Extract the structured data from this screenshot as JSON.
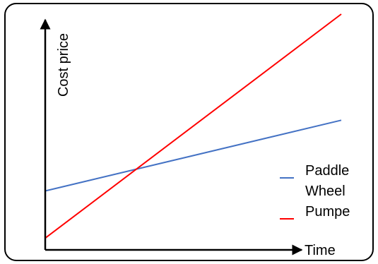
{
  "chart_data": {
    "type": "line",
    "title": "",
    "xlabel": "Time",
    "ylabel": "Cost price",
    "axes_tick_labels": false,
    "grid": false,
    "legend_position": "right",
    "series": [
      {
        "name": "Paddle Wheel",
        "legend_lines": [
          "Paddle",
          "Wheel"
        ],
        "color": "#4472c4",
        "x": [
          0,
          1
        ],
        "y": [
          0.25,
          0.55
        ]
      },
      {
        "name": "Pumpe",
        "legend_lines": [
          "Pumpe"
        ],
        "color": "#ff0000",
        "x": [
          0,
          1
        ],
        "y": [
          0.05,
          1.0
        ]
      }
    ],
    "xlim": [
      0,
      1
    ],
    "ylim": [
      0,
      1
    ]
  },
  "colors": {
    "axis": "#000000",
    "frame": "#000000",
    "background": "#ffffff"
  }
}
